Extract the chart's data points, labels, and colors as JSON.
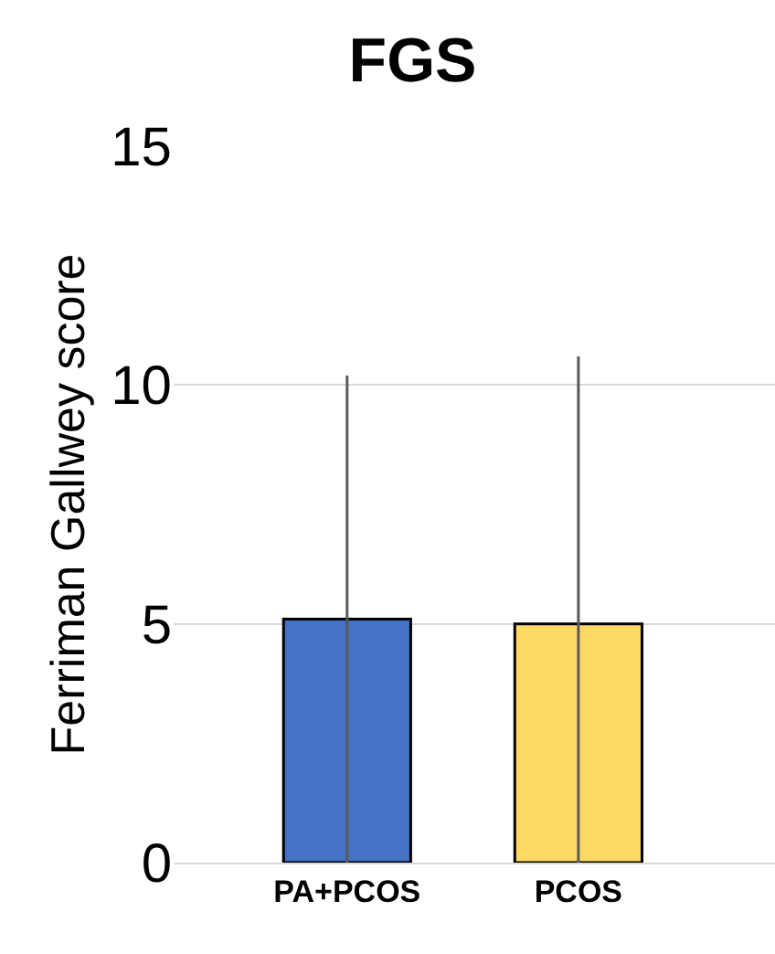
{
  "chart_data": {
    "type": "bar",
    "title": "FGS",
    "ylabel": "Ferriman Gallwey score",
    "categories": [
      "PA+PCOS",
      "PCOS"
    ],
    "values": [
      5.1,
      5.0
    ],
    "colors": [
      "#4472c4",
      "#ffd966"
    ],
    "errors": [
      5.1,
      [
        0,
        10.6
      ]
    ],
    "ylim": [
      0,
      15
    ],
    "yticks": [
      0,
      5,
      10,
      15
    ],
    "grid": "y",
    "legend": false
  }
}
